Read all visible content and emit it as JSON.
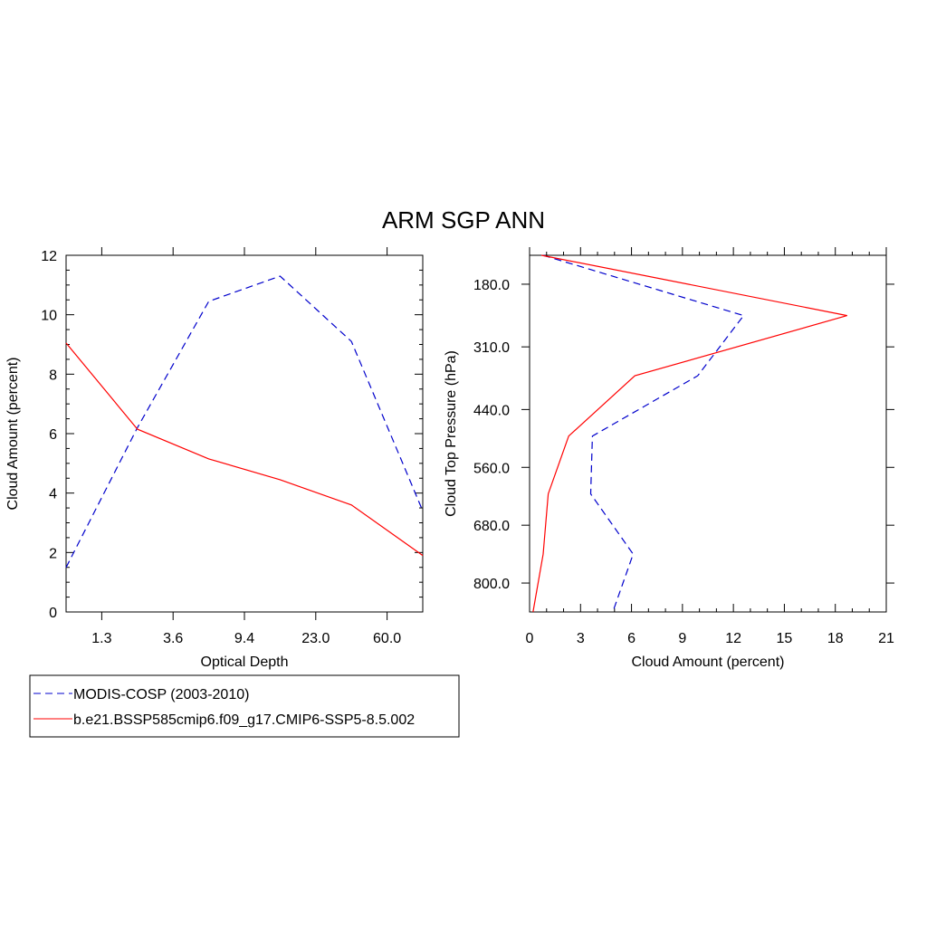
{
  "title": "ARM SGP ANN",
  "colors": {
    "obs": "#0000cc",
    "model": "#ff0000"
  },
  "legend": {
    "placement": "bottom-left",
    "items": [
      {
        "label": "MODIS-COSP (2003-2010)",
        "color": "#0000cc",
        "dash": true
      },
      {
        "label": "b.e21.BSSP585cmip6.f09_g17.CMIP6-SSP5-8.5.002",
        "color": "#ff0000",
        "dash": false
      }
    ]
  },
  "chart_data": [
    {
      "type": "line",
      "xlabel": "Optical Depth",
      "ylabel": "Cloud Amount (percent)",
      "ylim": [
        0,
        12
      ],
      "y_ticks": [
        0,
        2,
        4,
        6,
        8,
        10,
        12
      ],
      "x_index": [
        0,
        1,
        2,
        3,
        4,
        5,
        6
      ],
      "x_tick_labels": [
        {
          "at": 0.5,
          "label": "1.3"
        },
        {
          "at": 1.5,
          "label": "3.6"
        },
        {
          "at": 2.5,
          "label": "9.4"
        },
        {
          "at": 3.5,
          "label": "23.0"
        },
        {
          "at": 4.5,
          "label": "60.0"
        }
      ],
      "xlim": [
        0,
        5
      ],
      "series": [
        {
          "name": "MODIS-COSP (2003-2010)",
          "key": "obs",
          "x": [
            0,
            1,
            2,
            3,
            4,
            5
          ],
          "y": [
            1.5,
            6.2,
            10.45,
            11.3,
            9.1,
            3.4
          ]
        },
        {
          "name": "b.e21.BSSP585cmip6.f09_g17.CMIP6-SSP5-8.5.002",
          "key": "model",
          "x": [
            0,
            1,
            2,
            3,
            4,
            5
          ],
          "y": [
            9.05,
            6.15,
            5.15,
            4.45,
            3.6,
            1.9
          ]
        }
      ]
    },
    {
      "type": "line",
      "xlabel": "Cloud Amount (percent)",
      "ylabel": "Cloud Top Pressure (hPa)",
      "xlim": [
        0,
        21
      ],
      "x_ticks": [
        0,
        3,
        6,
        9,
        12,
        15,
        18,
        21
      ],
      "ylim_reversed": [
        120,
        860
      ],
      "y_tick_labels": [
        {
          "at": 180,
          "label": "180.0"
        },
        {
          "at": 310,
          "label": "310.0"
        },
        {
          "at": 440,
          "label": "440.0"
        },
        {
          "at": 560,
          "label": "560.0"
        },
        {
          "at": 680,
          "label": "680.0"
        },
        {
          "at": 800,
          "label": "800.0"
        }
      ],
      "series": [
        {
          "name": "MODIS-COSP (2003-2010)",
          "key": "obs",
          "pressure": [
            120,
            245,
            370,
            495,
            615,
            740,
            860
          ],
          "amount": [
            0.8,
            12.6,
            9.9,
            3.7,
            3.6,
            6.1,
            4.9
          ]
        },
        {
          "name": "b.e21.BSSP585cmip6.f09_g17.CMIP6-SSP5-8.5.002",
          "key": "model",
          "pressure": [
            120,
            245,
            370,
            495,
            615,
            740,
            860
          ],
          "amount": [
            0.7,
            18.7,
            6.2,
            2.3,
            1.1,
            0.8,
            0.2
          ]
        }
      ]
    }
  ]
}
